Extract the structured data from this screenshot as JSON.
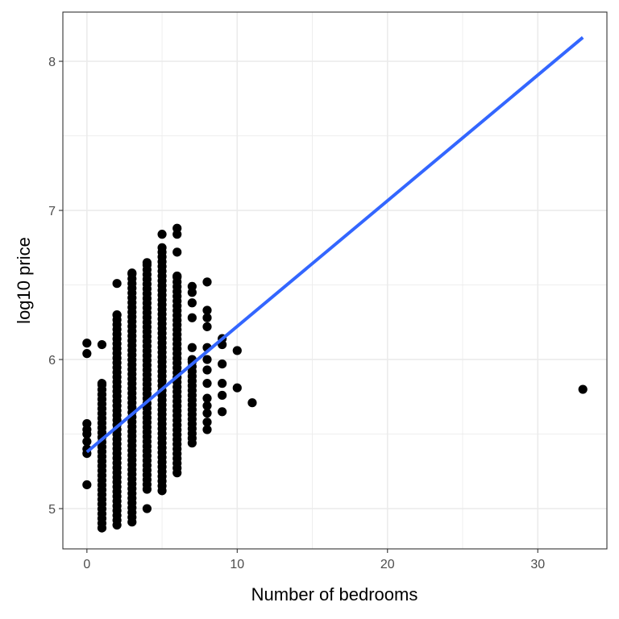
{
  "chart_data": {
    "type": "scatter",
    "title": "",
    "xlabel": "Number of bedrooms",
    "ylabel": "log10 price",
    "xlim": [
      -1.6,
      34.6
    ],
    "ylim": [
      4.73,
      8.33
    ],
    "x_ticks": [
      0,
      10,
      20,
      30
    ],
    "x_minor": [
      5,
      15,
      25
    ],
    "y_ticks": [
      5,
      6,
      7,
      8
    ],
    "y_minor": [
      5.5,
      6.5,
      7.5
    ],
    "grid": true,
    "legend": "none",
    "point_color": "#000000",
    "line_color": "#3366FF",
    "series": [
      {
        "type": "points",
        "columns": [
          {
            "x": 0,
            "values": [
              5.16,
              5.37,
              5.4,
              5.45,
              5.5,
              5.53,
              5.57,
              6.04,
              6.11
            ]
          },
          {
            "x": 1,
            "min": 4.87,
            "max": 5.84,
            "extra": [
              6.1
            ]
          },
          {
            "x": 2,
            "min": 4.89,
            "max": 6.3,
            "extra": [
              6.51
            ]
          },
          {
            "x": 3,
            "min": 4.91,
            "max": 6.58
          },
          {
            "x": 4,
            "min": 5.13,
            "max": 6.65,
            "extra": [
              5.0
            ]
          },
          {
            "x": 5,
            "min": 5.12,
            "max": 6.75,
            "extra": [
              6.84
            ]
          },
          {
            "x": 6,
            "min": 5.24,
            "max": 6.56,
            "extra": [
              6.72,
              6.84,
              6.88
            ]
          },
          {
            "x": 7,
            "min": 5.44,
            "max": 6.0,
            "extra": [
              6.08,
              6.28,
              6.38,
              6.45,
              6.49
            ]
          },
          {
            "x": 8,
            "values": [
              5.53,
              5.58,
              5.64,
              5.69,
              5.74,
              5.84,
              5.93,
              6.0,
              6.08,
              6.22,
              6.28,
              6.33,
              6.52
            ]
          },
          {
            "x": 9,
            "values": [
              5.65,
              5.76,
              5.84,
              5.97,
              6.1,
              6.14
            ]
          },
          {
            "x": 10,
            "values": [
              5.81,
              6.06
            ]
          },
          {
            "x": 11,
            "values": [
              5.71
            ]
          },
          {
            "x": 33,
            "values": [
              5.8
            ]
          }
        ]
      },
      {
        "type": "line",
        "method": "lm",
        "x": [
          0,
          33
        ],
        "y": [
          5.38,
          8.16
        ]
      }
    ]
  }
}
